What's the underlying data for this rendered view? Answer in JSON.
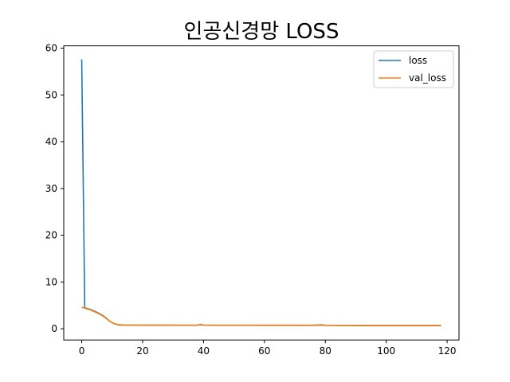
{
  "chart_data": {
    "type": "line",
    "title": "인공신경망 LOSS",
    "xlabel": "",
    "ylabel": "",
    "xlim": [
      -5.9,
      123.9
    ],
    "ylim": [
      -2.4,
      60.5
    ],
    "xticks": [
      0,
      20,
      40,
      60,
      80,
      100,
      120
    ],
    "yticks": [
      0,
      10,
      20,
      30,
      40,
      50,
      60
    ],
    "grid": false,
    "legend_position": "top-right",
    "series": [
      {
        "name": "loss",
        "color": "#1f77b4",
        "x": [
          0,
          1,
          2,
          3,
          4,
          5,
          6,
          7,
          8,
          9,
          10,
          11,
          12,
          13,
          14,
          16,
          18,
          20,
          25,
          30,
          35,
          38,
          39,
          40,
          45,
          50,
          55,
          60,
          65,
          70,
          75,
          79,
          80,
          85,
          90,
          95,
          100,
          105,
          110,
          115,
          118
        ],
        "y": [
          57.6,
          4.5,
          4.3,
          4.1,
          3.8,
          3.5,
          3.2,
          2.8,
          2.3,
          1.7,
          1.3,
          1.0,
          0.85,
          0.8,
          0.78,
          0.77,
          0.76,
          0.76,
          0.75,
          0.75,
          0.74,
          0.74,
          0.9,
          0.76,
          0.74,
          0.74,
          0.74,
          0.73,
          0.73,
          0.72,
          0.72,
          0.8,
          0.72,
          0.7,
          0.68,
          0.67,
          0.67,
          0.66,
          0.66,
          0.66,
          0.66
        ]
      },
      {
        "name": "val_loss",
        "color": "#ff7f0e",
        "x": [
          0,
          1,
          2,
          3,
          4,
          5,
          6,
          7,
          8,
          9,
          10,
          11,
          12,
          13,
          14,
          16,
          18,
          20,
          25,
          30,
          35,
          38,
          39,
          40,
          45,
          50,
          55,
          60,
          65,
          70,
          75,
          79,
          80,
          85,
          90,
          95,
          100,
          105,
          110,
          115,
          118
        ],
        "y": [
          4.6,
          4.4,
          4.2,
          4.0,
          3.7,
          3.4,
          3.1,
          2.7,
          2.2,
          1.7,
          1.3,
          1.0,
          0.9,
          0.85,
          0.82,
          0.8,
          0.8,
          0.8,
          0.79,
          0.78,
          0.78,
          0.78,
          0.95,
          0.8,
          0.78,
          0.78,
          0.78,
          0.77,
          0.77,
          0.77,
          0.76,
          0.85,
          0.76,
          0.74,
          0.72,
          0.71,
          0.7,
          0.7,
          0.7,
          0.7,
          0.7
        ]
      }
    ]
  }
}
